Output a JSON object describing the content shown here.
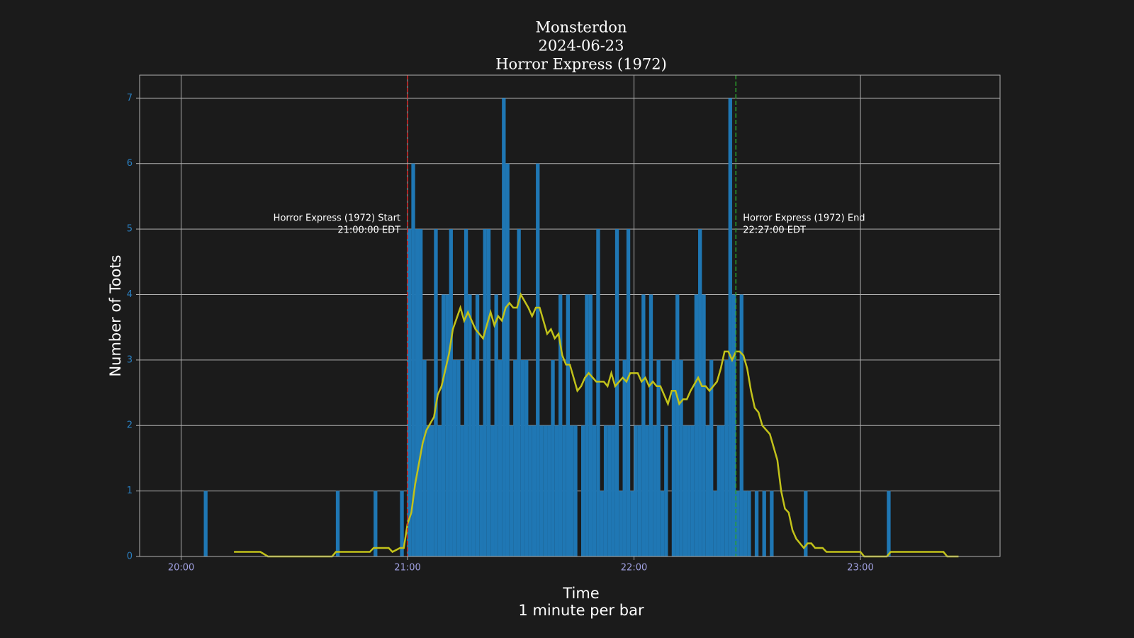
{
  "chart_data": {
    "type": "bar",
    "title_lines": [
      "Monsterdon",
      "2024-06-23",
      "Horror Express (1972)"
    ],
    "x_label_lines": [
      "Time",
      "1 minute per bar"
    ],
    "y_label": "Number of Toots",
    "xlim": [
      "19:49",
      "23:37"
    ],
    "xticks": [
      "20:00",
      "21:00",
      "22:00",
      "23:00"
    ],
    "ylim": [
      0,
      7.35
    ],
    "yticks": [
      0,
      1,
      2,
      3,
      4,
      5,
      6,
      7
    ],
    "grid": true,
    "series": [
      {
        "type": "bar",
        "color": "#1f77b4",
        "x": [
          "20:06",
          "20:41",
          "20:51",
          "20:58",
          "21:00",
          "21:01",
          "21:02",
          "21:03",
          "21:04",
          "21:05",
          "21:06",
          "21:07",
          "21:08",
          "21:09",
          "21:10",
          "21:11",
          "21:12",
          "21:13",
          "21:14",
          "21:15",
          "21:16",
          "21:17",
          "21:18",
          "21:19",
          "21:20",
          "21:21",
          "21:22",
          "21:23",
          "21:24",
          "21:25",
          "21:26",
          "21:27",
          "21:28",
          "21:29",
          "21:30",
          "21:31",
          "21:32",
          "21:33",
          "21:34",
          "21:35",
          "21:36",
          "21:37",
          "21:38",
          "21:39",
          "21:40",
          "21:41",
          "21:42",
          "21:43",
          "21:44",
          "21:45",
          "21:46",
          "21:47",
          "21:48",
          "21:49",
          "21:50",
          "21:51",
          "21:52",
          "21:53",
          "21:54",
          "21:55",
          "21:56",
          "21:57",
          "21:58",
          "21:59",
          "22:00",
          "22:01",
          "22:02",
          "22:03",
          "22:04",
          "22:05",
          "22:06",
          "22:07",
          "22:08",
          "22:09",
          "22:10",
          "22:11",
          "22:12",
          "22:13",
          "22:14",
          "22:15",
          "22:16",
          "22:17",
          "22:18",
          "22:19",
          "22:20",
          "22:21",
          "22:22",
          "22:23",
          "22:24",
          "22:25",
          "22:26",
          "22:27",
          "22:28",
          "22:29",
          "22:30",
          "22:31",
          "22:32",
          "22:33",
          "22:34",
          "22:35",
          "22:36",
          "22:45",
          "23:07"
        ],
        "values": [
          1,
          1,
          1,
          1,
          5,
          6,
          5,
          5,
          3,
          2,
          2,
          5,
          2,
          4,
          4,
          5,
          3,
          3,
          2,
          5,
          4,
          3,
          4,
          2,
          5,
          5,
          2,
          4,
          3,
          7,
          6,
          2,
          3,
          5,
          3,
          3,
          2,
          2,
          6,
          2,
          2,
          2,
          3,
          2,
          4,
          2,
          4,
          2,
          2,
          0,
          2,
          4,
          4,
          2,
          5,
          1,
          2,
          2,
          2,
          5,
          1,
          3,
          5,
          1,
          2,
          2,
          4,
          2,
          4,
          2,
          3,
          1,
          2,
          0,
          3,
          4,
          3,
          2,
          2,
          2,
          4,
          5,
          4,
          2,
          3,
          1,
          2,
          2,
          3,
          7,
          4,
          1,
          4,
          1,
          1,
          0,
          1,
          0,
          1,
          0,
          1,
          1,
          1
        ]
      },
      {
        "type": "line",
        "color": "#c2c21a",
        "x": [
          "20:14",
          "20:21",
          "20:23",
          "20:40",
          "20:41",
          "20:50",
          "20:51",
          "20:55",
          "20:56",
          "20:58",
          "20:59",
          "21:00",
          "21:01",
          "21:02",
          "21:04",
          "21:05",
          "21:07",
          "21:08",
          "21:09",
          "21:11",
          "21:12",
          "21:14",
          "21:15",
          "21:16",
          "21:18",
          "21:20",
          "21:21",
          "21:22",
          "21:23",
          "21:24",
          "21:25",
          "21:26",
          "21:27",
          "21:28",
          "21:29",
          "21:30",
          "21:32",
          "21:33",
          "21:34",
          "21:35",
          "21:37",
          "21:38",
          "21:39",
          "21:40",
          "21:41",
          "21:42",
          "21:43",
          "21:45",
          "21:46",
          "21:47",
          "21:48",
          "21:50",
          "21:52",
          "21:53",
          "21:54",
          "21:55",
          "21:57",
          "21:58",
          "21:59",
          "22:01",
          "22:02",
          "22:03",
          "22:04",
          "22:05",
          "22:06",
          "22:07",
          "22:09",
          "22:10",
          "22:11",
          "22:12",
          "22:13",
          "22:14",
          "22:15",
          "22:17",
          "22:18",
          "22:19",
          "22:20",
          "22:22",
          "22:23",
          "22:24",
          "22:25",
          "22:26",
          "22:27",
          "22:28",
          "22:29",
          "22:30",
          "22:31",
          "22:32",
          "22:33",
          "22:34",
          "22:36",
          "22:38",
          "22:39",
          "22:40",
          "22:41",
          "22:42",
          "22:43",
          "22:45",
          "22:46",
          "22:47",
          "22:48",
          "22:50",
          "22:51",
          "23:00",
          "23:01",
          "23:07",
          "23:08",
          "23:22",
          "23:23",
          "23:26"
        ],
        "values": [
          0.07,
          0.07,
          0,
          0,
          0.07,
          0.07,
          0.13,
          0.13,
          0.07,
          0.13,
          0.13,
          0.5,
          0.67,
          1.1,
          1.73,
          1.93,
          2.13,
          2.47,
          2.6,
          3.1,
          3.47,
          3.8,
          3.6,
          3.73,
          3.47,
          3.33,
          3.53,
          3.73,
          3.53,
          3.67,
          3.6,
          3.8,
          3.87,
          3.8,
          3.8,
          4.0,
          3.8,
          3.67,
          3.8,
          3.8,
          3.4,
          3.47,
          3.33,
          3.4,
          3.07,
          2.93,
          2.93,
          2.53,
          2.6,
          2.73,
          2.8,
          2.67,
          2.67,
          2.6,
          2.8,
          2.6,
          2.73,
          2.67,
          2.8,
          2.8,
          2.67,
          2.73,
          2.6,
          2.67,
          2.6,
          2.6,
          2.33,
          2.53,
          2.53,
          2.33,
          2.4,
          2.4,
          2.53,
          2.73,
          2.6,
          2.6,
          2.53,
          2.67,
          2.87,
          3.13,
          3.13,
          3.0,
          3.13,
          3.13,
          3.07,
          2.87,
          2.53,
          2.27,
          2.2,
          2.0,
          1.87,
          1.47,
          1.0,
          0.73,
          0.67,
          0.4,
          0.27,
          0.13,
          0.2,
          0.2,
          0.13,
          0.13,
          0.07,
          0.07,
          0,
          0,
          0.07,
          0.07,
          0,
          0
        ]
      }
    ],
    "events": [
      {
        "x": "21:00",
        "color": "#d62728",
        "label_lines": [
          "Horror Express (1972) Start",
          "21:00:00 EDT"
        ]
      },
      {
        "x": "22:27",
        "color": "#2ca02c",
        "label_lines": [
          "Horror Express (1972) End",
          "22:27:00 EDT"
        ]
      }
    ]
  }
}
